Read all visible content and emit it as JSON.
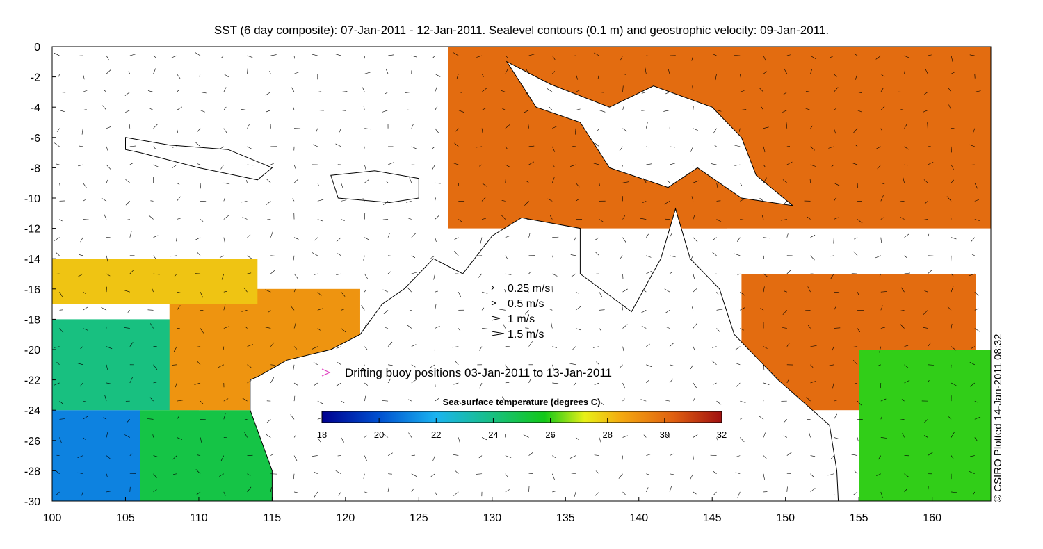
{
  "title": "SST (6 day composite): 07-Jan-2011 - 12-Jan-2011. Sealevel contours (0.1 m) and geostrophic velocity: 09-Jan-2011.",
  "credit": "© CSIRO Plotted 14-Jan-2011 08:32",
  "colors": {
    "land": "#ffffff",
    "coastline": "#000000",
    "buoy": "#e040c0",
    "contour": "#ffffff",
    "arrow": "#000000"
  },
  "chart_data": {
    "type": "heatmap",
    "title": "SST (6 day composite): 07-Jan-2011 - 12-Jan-2011. Sealevel contours (0.1 m) and geostrophic velocity: 09-Jan-2011.",
    "xlabel": "",
    "ylabel": "",
    "xlim": [
      100,
      164
    ],
    "ylim": [
      -30,
      0
    ],
    "x_ticks": [
      "100",
      "105",
      "110",
      "115",
      "120",
      "125",
      "130",
      "135",
      "140",
      "145",
      "150",
      "155",
      "160"
    ],
    "y_ticks": [
      "0",
      "-2",
      "-4",
      "-6",
      "-8",
      "-10",
      "-12",
      "-14",
      "-16",
      "-18",
      "-20",
      "-22",
      "-24",
      "-26",
      "-28",
      "-30"
    ],
    "sst_zones": [
      {
        "lon": [
          100,
          106
        ],
        "lat": [
          -30,
          -24
        ],
        "sst": 21
      },
      {
        "lon": [
          100,
          110
        ],
        "lat": [
          -24,
          -18
        ],
        "sst": 24
      },
      {
        "lon": [
          106,
          115
        ],
        "lat": [
          -30,
          -24
        ],
        "sst": 25
      },
      {
        "lon": [
          108,
          121
        ],
        "lat": [
          -24,
          -16
        ],
        "sst": 29
      },
      {
        "lon": [
          100,
          114
        ],
        "lat": [
          -17,
          -14
        ],
        "sst": 28
      },
      {
        "lon": [
          127,
          146
        ],
        "lat": [
          -12,
          0
        ],
        "sst": 30
      },
      {
        "lon": [
          143,
          164
        ],
        "lat": [
          -12,
          0
        ],
        "sst": 30
      },
      {
        "lon": [
          147,
          163
        ],
        "lat": [
          -24,
          -15
        ],
        "sst": 30
      },
      {
        "lon": [
          155,
          164
        ],
        "lat": [
          -30,
          -20
        ],
        "sst": 26
      }
    ],
    "colorbar": {
      "title": "Sea surface temperature (degrees C)",
      "min": 18,
      "max": 32,
      "ticks": [
        "18",
        "20",
        "22",
        "24",
        "26",
        "28",
        "30",
        "32"
      ],
      "stops": [
        {
          "v": 18,
          "c": "#00008f"
        },
        {
          "v": 20,
          "c": "#0050d0"
        },
        {
          "v": 22,
          "c": "#1ab4f0"
        },
        {
          "v": 24,
          "c": "#18c080"
        },
        {
          "v": 25.8,
          "c": "#12c818"
        },
        {
          "v": 27.2,
          "c": "#e8f018"
        },
        {
          "v": 28.5,
          "c": "#f4a810"
        },
        {
          "v": 30.3,
          "c": "#e06010"
        },
        {
          "v": 32,
          "c": "#a01010"
        }
      ]
    },
    "velocity_legend": [
      {
        "speed": 0.25,
        "label": "0.25 m/s"
      },
      {
        "speed": 0.5,
        "label": "0.5 m/s"
      },
      {
        "speed": 1,
        "label": "1 m/s"
      },
      {
        "speed": 1.5,
        "label": "1.5 m/s"
      }
    ],
    "buoy_legend": "Drifting buoy positions 03-Jan-2011 to 13-Jan-2011"
  }
}
